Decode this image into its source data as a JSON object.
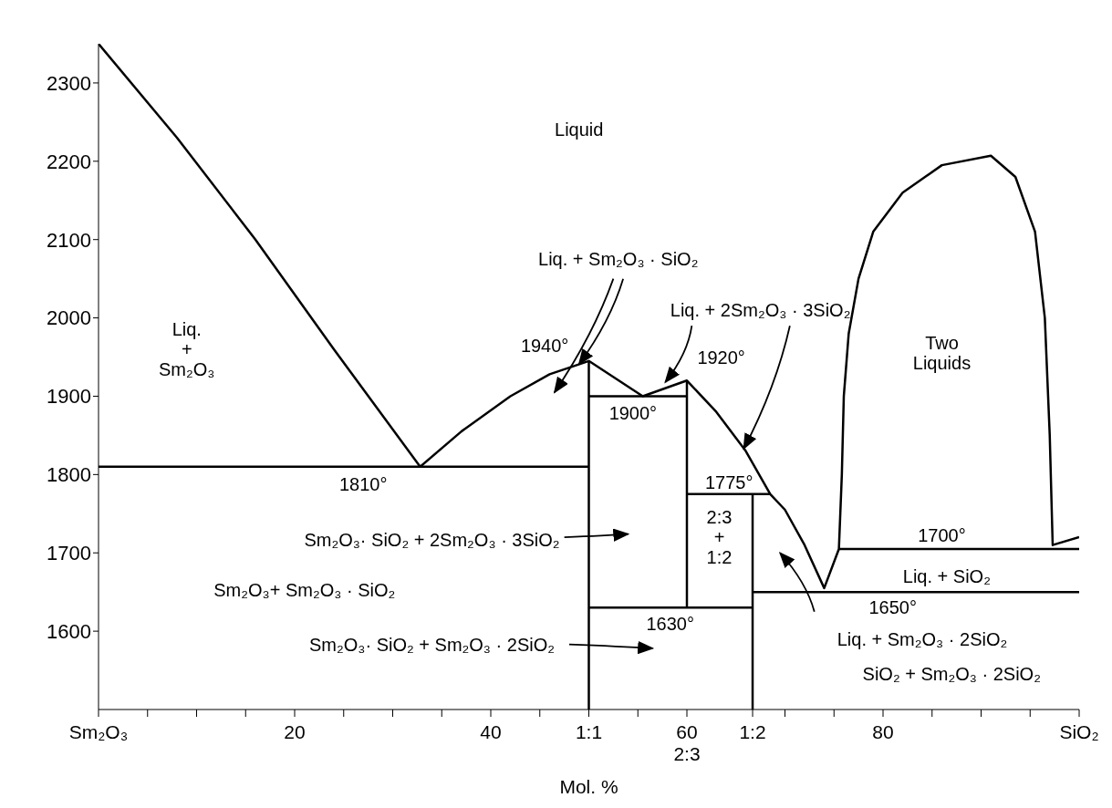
{
  "chart_data": {
    "type": "line",
    "xlabel": "Mol. %",
    "xlim": [
      0,
      100
    ],
    "ylim": [
      1500,
      2350
    ],
    "xticks": [
      {
        "value": 0,
        "label": "Sm₂O₃"
      },
      {
        "value": 5,
        "label": null
      },
      {
        "value": 10,
        "label": null
      },
      {
        "value": 15,
        "label": null
      },
      20,
      {
        "value": 25,
        "label": null
      },
      {
        "value": 30,
        "label": null
      },
      {
        "value": 35,
        "label": null
      },
      40,
      {
        "value": 45,
        "label": null
      },
      {
        "value": 50,
        "label": "1:1"
      },
      {
        "value": 55,
        "label": null
      },
      {
        "value": 60,
        "label": "60\n2:3"
      },
      {
        "value": 66.7,
        "label": "1:2"
      },
      {
        "value": 70,
        "label": null
      },
      {
        "value": 75,
        "label": null
      },
      80,
      {
        "value": 85,
        "label": null
      },
      {
        "value": 90,
        "label": null
      },
      {
        "value": 95,
        "label": null
      },
      {
        "value": 100,
        "label": "SiO₂"
      }
    ],
    "yticks": [
      1600,
      1700,
      1800,
      1900,
      2000,
      2100,
      2200,
      2300
    ],
    "series": [
      {
        "color": "#000000",
        "x": [
          0,
          8,
          16,
          24,
          32.8,
          37,
          42,
          46,
          50,
          55.5,
          60,
          63,
          66,
          68.5,
          70,
          72,
          74,
          75.5,
          75.8,
          76,
          76.5,
          77.5,
          79,
          82,
          86,
          91,
          93.5,
          95.5,
          96.5,
          97,
          97.3,
          100
        ],
        "values": [
          2350,
          2230,
          2100,
          1960,
          1810,
          1855,
          1900,
          1928,
          1945,
          1900,
          1920,
          1880,
          1830,
          1775,
          1755,
          1710,
          1655,
          1705,
          1800,
          1900,
          1980,
          2050,
          2110,
          2160,
          2195,
          2207,
          2180,
          2110,
          2000,
          1850,
          1710,
          1720
        ]
      },
      {
        "color": "#000000",
        "x": [
          0,
          50
        ],
        "values": [
          1810,
          1810
        ]
      },
      {
        "color": "#000000",
        "x": [
          50,
          60
        ],
        "values": [
          1900,
          1900
        ]
      },
      {
        "color": "#000000",
        "x": [
          60,
          68.5
        ],
        "values": [
          1775,
          1775
        ]
      },
      {
        "color": "#000000",
        "x": [
          75.5,
          100
        ],
        "values": [
          1705,
          1705
        ]
      },
      {
        "color": "#000000",
        "x": [
          66.7,
          100
        ],
        "values": [
          1650,
          1650
        ]
      },
      {
        "color": "#000000",
        "x": [
          50,
          66.7
        ],
        "values": [
          1630,
          1630
        ]
      },
      {
        "color": "#000000",
        "x": [
          50,
          50
        ],
        "values": [
          1500,
          1945
        ]
      },
      {
        "color": "#000000",
        "x": [
          60,
          60
        ],
        "values": [
          1630,
          1920
        ]
      },
      {
        "color": "#000000",
        "x": [
          66.7,
          66.7
        ],
        "values": [
          1500,
          1775
        ]
      }
    ],
    "annotations": [
      "Liquid",
      "Liq.\n+\nSm₂O₃",
      "Two\nLiquids",
      {
        "text": "Liq. + Sm₂O₃ · SiO₂",
        "x": 49,
        "y": 1941
      },
      {
        "text": "Liq. + 2Sm₂O₃ · 3SiO₂",
        "x": 65.8,
        "y": 1833
      },
      "1940°",
      "1920°",
      "1900°",
      "1810°",
      "1775°",
      "1700°",
      "Sm₂O₃· SiO₂ + 2Sm₂O₃ · 3SiO₂",
      "2:3\n+\n1:2",
      "Sm₂O₃+ Sm₂O₃ · SiO₂",
      "Liq. + SiO₂",
      "1650°",
      "1630°",
      "Liq. + Sm₂O₃ · 2SiO₂",
      "SiO₂ + Sm₂O₃ · 2SiO₂",
      "Sm₂O₃· SiO₂ + Sm₂O₃ · 2SiO₂"
    ]
  }
}
